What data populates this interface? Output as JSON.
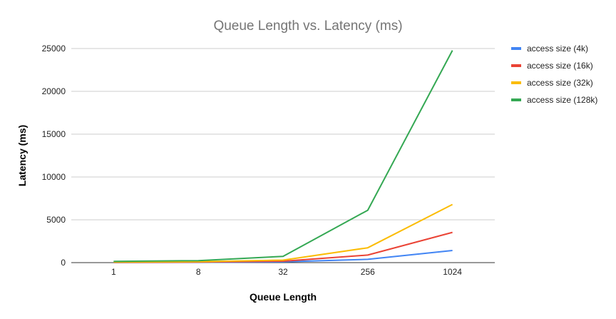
{
  "chart_data": {
    "type": "line",
    "title": "Queue Length vs. Latency (ms)",
    "xlabel": "Queue Length",
    "ylabel": "Latency (ms)",
    "categories": [
      "1",
      "8",
      "32",
      "256",
      "1024"
    ],
    "ylim": [
      0,
      25000
    ],
    "yticks": [
      "0",
      "5000",
      "10000",
      "15000",
      "20000",
      "25000"
    ],
    "grid": true,
    "legend_position": "right",
    "series": [
      {
        "name": "access size (4k)",
        "color": "#4285F4",
        "values": [
          10,
          30,
          90,
          380,
          1420
        ]
      },
      {
        "name": "access size (16k)",
        "color": "#EA4335",
        "values": [
          30,
          60,
          170,
          880,
          3530
        ]
      },
      {
        "name": "access size (32k)",
        "color": "#FBBC04",
        "values": [
          60,
          110,
          290,
          1730,
          6790
        ]
      },
      {
        "name": "access size (128k)",
        "color": "#34A853",
        "values": [
          150,
          230,
          730,
          6120,
          24780
        ]
      }
    ]
  }
}
